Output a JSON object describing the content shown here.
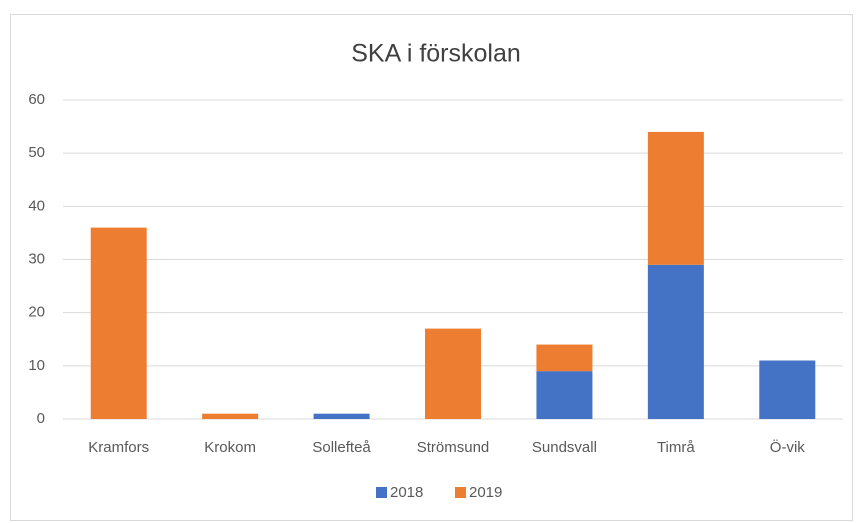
{
  "chart_data": {
    "type": "stacked_bar",
    "title": "SKA i förskolan",
    "categories": [
      "Kramfors",
      "Krokom",
      "Sollefteå",
      "Strömsund",
      "Sundsvall",
      "Timrå",
      "Ö-vik"
    ],
    "series": [
      {
        "name": "2018",
        "color": "#4472c4",
        "values": [
          0,
          0,
          1,
          0,
          9,
          29,
          11
        ]
      },
      {
        "name": "2019",
        "color": "#ed7d31",
        "values": [
          36,
          1,
          0,
          17,
          5,
          25,
          0
        ]
      }
    ],
    "ylim": [
      0,
      60
    ],
    "yticks": [
      0,
      10,
      20,
      30,
      40,
      50,
      60
    ],
    "grid": true,
    "legend": "bottom"
  }
}
